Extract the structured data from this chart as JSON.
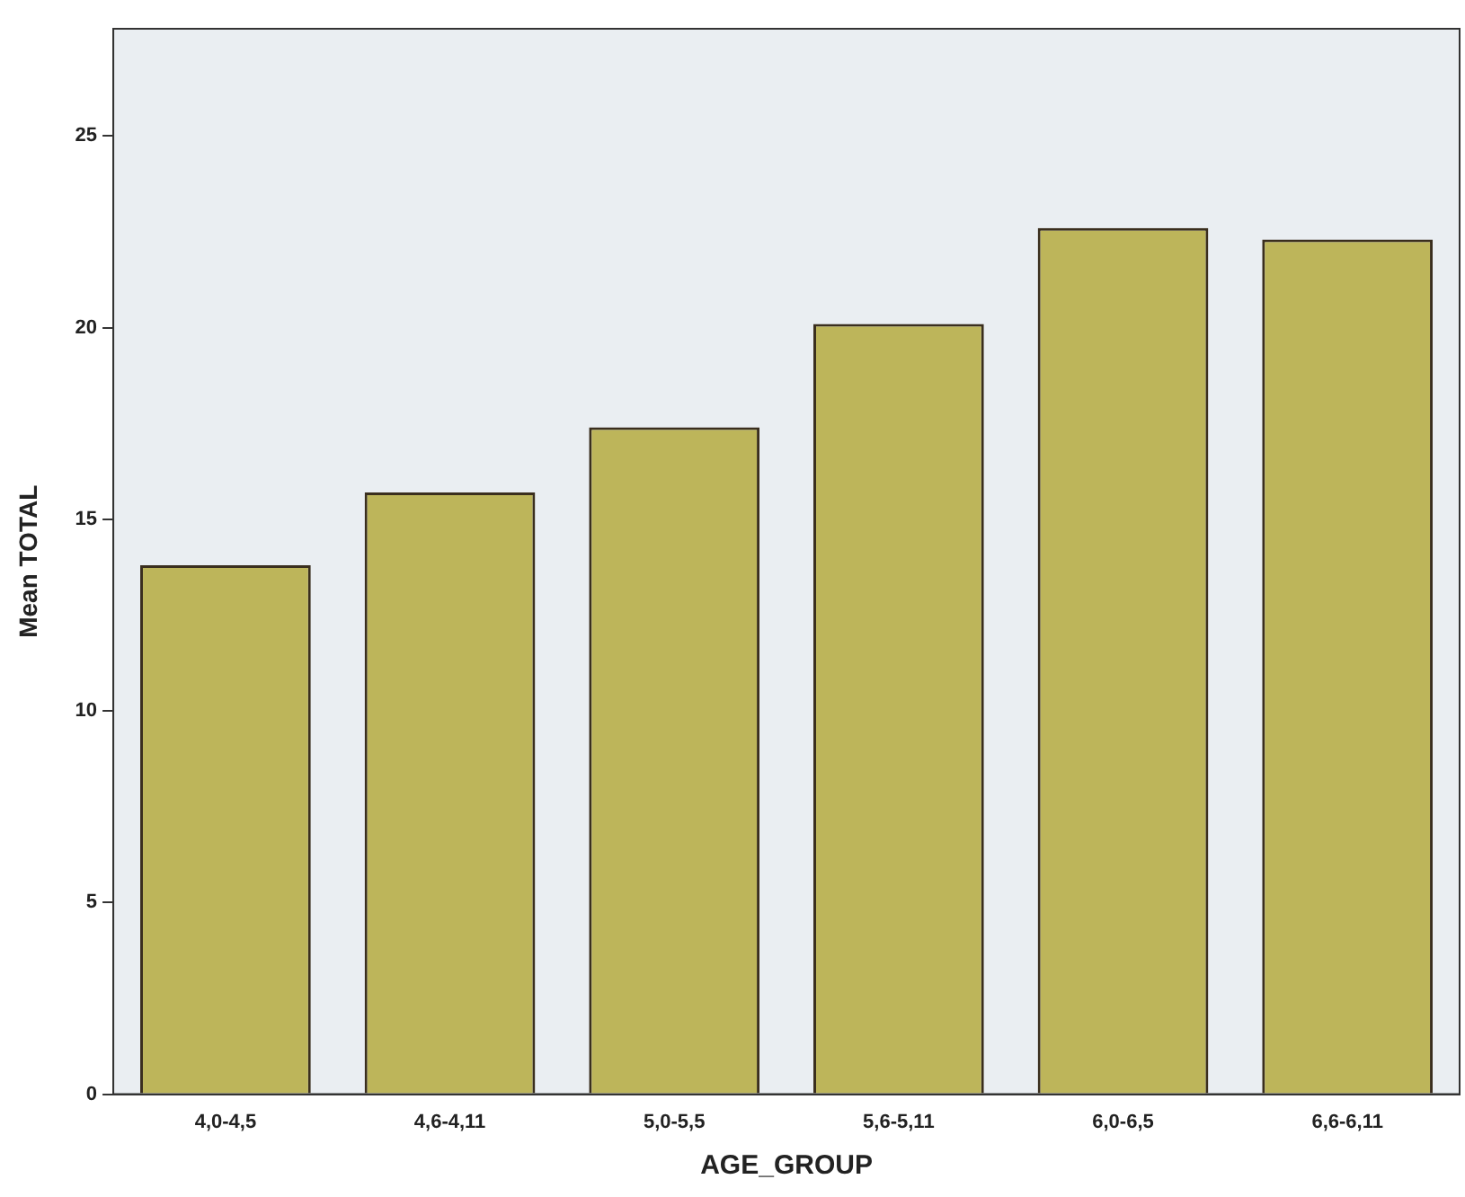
{
  "chart_data": {
    "type": "bar",
    "xlabel": "AGE_GROUP",
    "ylabel": "Mean TOTAL",
    "categories": [
      "4,0-4,5",
      "4,6-4,11",
      "5,0-5,5",
      "5,6-5,11",
      "6,0-6,5",
      "6,6-6,11"
    ],
    "values": [
      13.8,
      15.7,
      17.4,
      20.1,
      22.6,
      22.3
    ],
    "color": "#bdb55a",
    "ylim": [
      0,
      27.8
    ],
    "yticks": [
      0,
      5,
      10,
      15,
      20,
      25
    ],
    "grid": false,
    "legend": false
  }
}
